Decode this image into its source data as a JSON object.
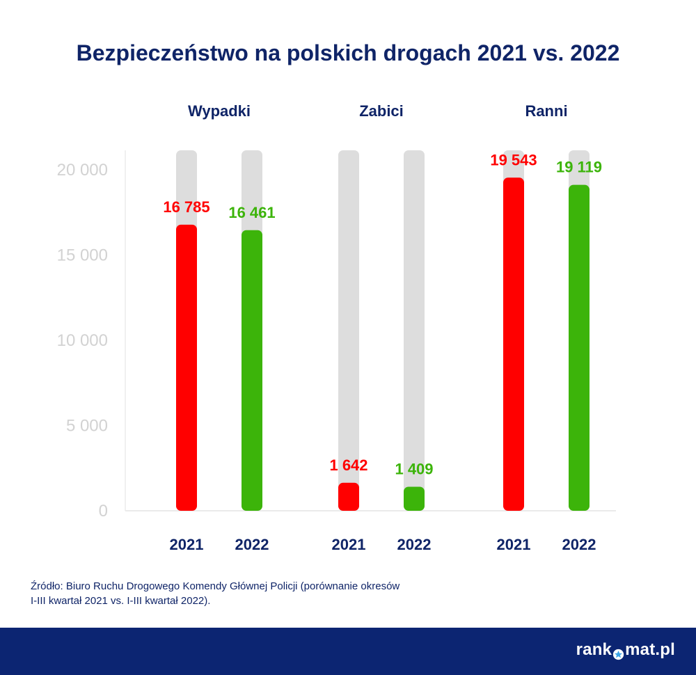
{
  "title": "Bezpieczeństwo na polskich drogach 2021 vs. 2022",
  "colors": {
    "series_2021": "#ff0000",
    "series_2022": "#3cb40a",
    "track": "#dddddd",
    "tick_text": "#d2d2d2",
    "navy": "#0f2467",
    "footer": "#0c2572"
  },
  "chart_data": {
    "type": "bar",
    "categories": [
      "Wypadki",
      "Zabici",
      "Ranni"
    ],
    "series": [
      {
        "name": "2021",
        "values": [
          16785,
          1642,
          19543
        ],
        "labels": [
          "16 785",
          "1 642",
          "19 543"
        ]
      },
      {
        "name": "2022",
        "values": [
          16461,
          1409,
          19119
        ],
        "labels": [
          "16 461",
          "1 409",
          "19 119"
        ]
      }
    ],
    "yticks": [
      0,
      5000,
      10000,
      15000,
      20000
    ],
    "ytick_labels": [
      "0",
      "5 000",
      "10 000",
      "15 000",
      "20 000"
    ],
    "ylim": [
      0,
      21000
    ],
    "title": "Bezpieczeństwo na polskich drogach 2021 vs. 2022",
    "xlabel": "",
    "ylabel": "",
    "grid": false,
    "legend": "none"
  },
  "source": {
    "line1": "Źródło: Biuro Ruchu Drogowego Komendy Głównej Policji (porównanie okresów",
    "line2": "I-III kwartał 2021 vs. I-III kwartał 2022)."
  },
  "brand": {
    "part1": "rank",
    "part2": "mat.pl",
    "icon": "star-o-icon"
  }
}
